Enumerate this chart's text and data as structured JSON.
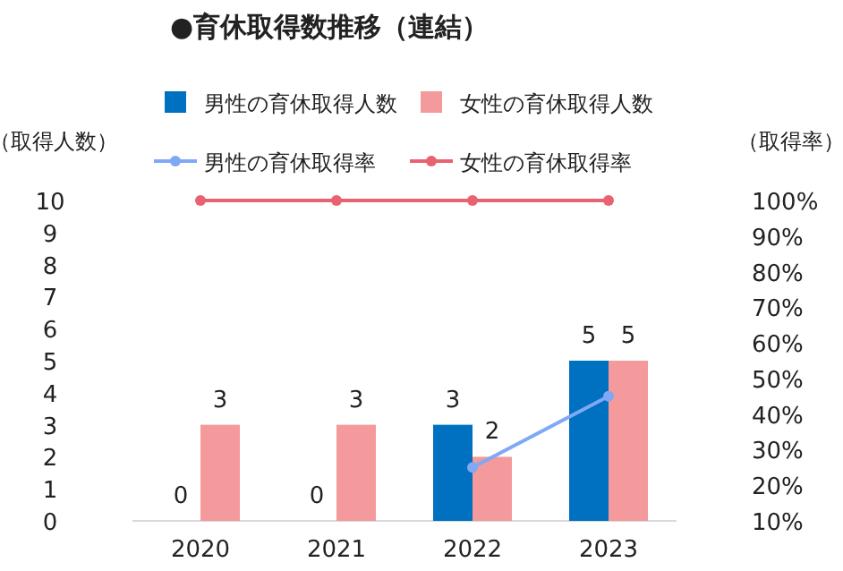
{
  "chart_data": {
    "type": "bar",
    "title": "●育休取得数推移（連結）",
    "ylabel": "（取得人数）",
    "y2label": "（取得率）",
    "categories": [
      "2020",
      "2021",
      "2022",
      "2023"
    ],
    "series": [
      {
        "name": "男性の育休取得人数",
        "color": "#0070c0",
        "values": [
          0,
          0,
          3,
          5
        ],
        "value_labels": [
          "0",
          "0",
          "3",
          "5"
        ]
      },
      {
        "name": "女性の育休取得人数",
        "color": "#f4999c",
        "values": [
          3,
          3,
          2,
          5
        ],
        "value_labels": [
          "3",
          "3",
          "2",
          "5"
        ]
      },
      {
        "name": "男性の育休取得率",
        "type": "line",
        "axis": "y2",
        "color": "#7fa8f5",
        "values": [
          null,
          null,
          25,
          45
        ]
      },
      {
        "name": "女性の育休取得率",
        "type": "line",
        "axis": "y2",
        "color": "#e8636f",
        "values": [
          100,
          100,
          100,
          100
        ]
      }
    ],
    "ylim": [
      0,
      10
    ],
    "yticks": [
      0,
      1,
      2,
      3,
      4,
      5,
      6,
      7,
      8,
      9,
      10
    ],
    "y2lim": [
      10,
      100
    ],
    "y2ticks": [
      {
        "value": 10,
        "label": "10%"
      },
      {
        "value": 20,
        "label": "20%"
      },
      {
        "value": 30,
        "label": "30%"
      },
      {
        "value": 40,
        "label": "40%"
      },
      {
        "value": 50,
        "label": "50%"
      },
      {
        "value": 60,
        "label": "60%"
      },
      {
        "value": 70,
        "label": "70%"
      },
      {
        "value": 80,
        "label": "80%"
      },
      {
        "value": 90,
        "label": "90%"
      },
      {
        "value": 100,
        "label": "100%"
      }
    ],
    "marker": "circle",
    "legend": "top",
    "grid": false
  }
}
